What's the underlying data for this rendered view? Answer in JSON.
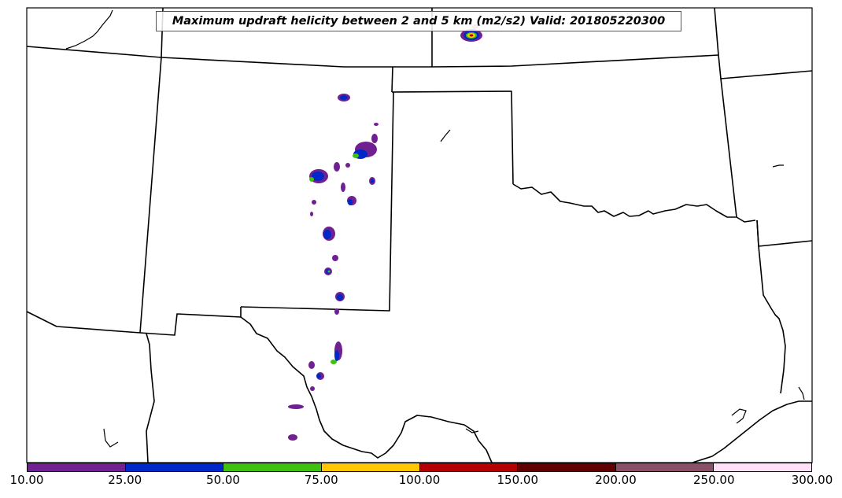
{
  "title": "Maximum updraft helicity between 2 and 5 km (m2/s2) Valid: 201805220300",
  "colors": {
    "boundary": "#000000",
    "background": "#ffffff",
    "levels": [
      "#702090",
      "#0028c8",
      "#40c010",
      "#ffc800",
      "#b40000",
      "#600000",
      "#8a5068",
      "#ffe0f8"
    ]
  },
  "colorbar": {
    "ticks": [
      "10.00",
      "25.00",
      "50.00",
      "75.00",
      "100.00",
      "150.00",
      "200.00",
      "250.00",
      "300.00"
    ]
  }
}
